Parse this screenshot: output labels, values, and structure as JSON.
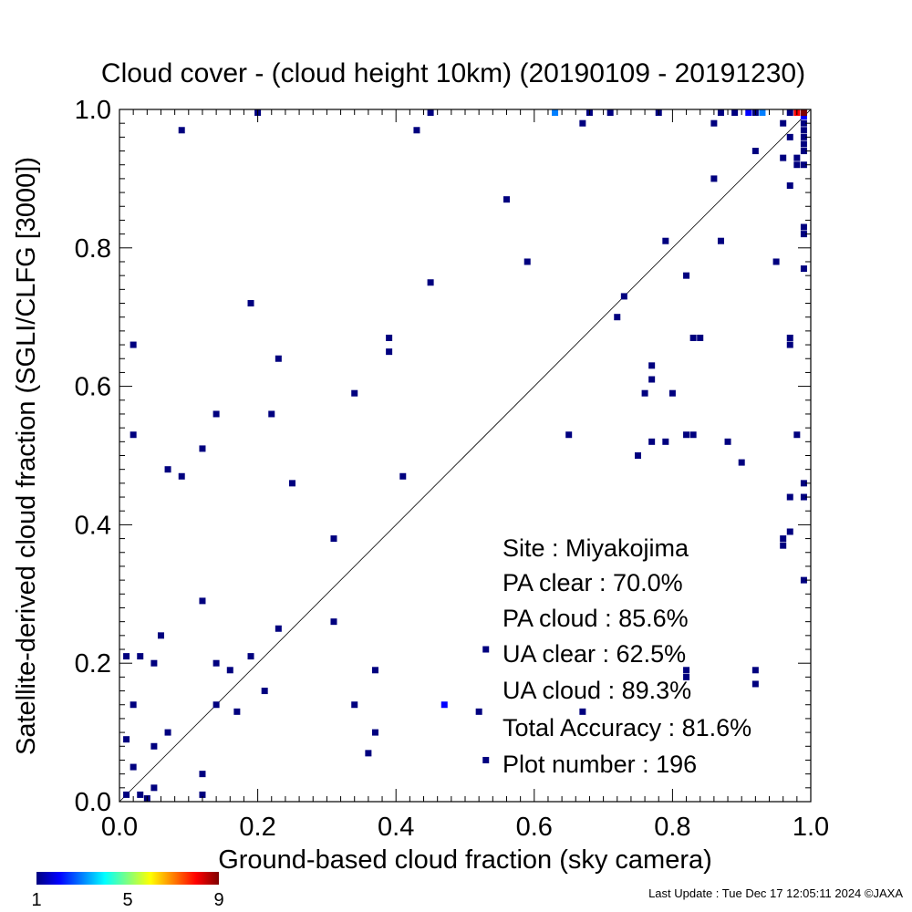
{
  "chart_data": {
    "type": "heatmap",
    "title": "Cloud cover - (cloud height 10km)  (20190109 - 20191230)",
    "xlabel": "Ground-based cloud fraction (sky camera)",
    "ylabel": "Satellite-derived cloud fraction (SGLI/CLFG [3000])",
    "xlim": [
      0.0,
      1.0
    ],
    "ylim": [
      0.0,
      1.0
    ],
    "x_ticks": [
      "0.0",
      "0.2",
      "0.4",
      "0.6",
      "0.8",
      "1.0"
    ],
    "y_ticks": [
      "0.0",
      "0.2",
      "0.4",
      "0.6",
      "0.8",
      "1.0"
    ],
    "diagonal": "y = x",
    "grid": false,
    "colorbar": {
      "min": 1,
      "max": 9,
      "tick_labels": [
        "1",
        "5",
        "9"
      ],
      "colors": [
        "#00007f",
        "#0000ff",
        "#007fff",
        "#00ffff",
        "#7fff7f",
        "#ffff00",
        "#ff7f00",
        "#ff0000",
        "#7f0000"
      ]
    },
    "points": [
      [
        0.01,
        0.01,
        1
      ],
      [
        0.03,
        0.01,
        1
      ],
      [
        0.04,
        0.0,
        1
      ],
      [
        0.05,
        0.02,
        1
      ],
      [
        0.02,
        0.05,
        1
      ],
      [
        0.05,
        0.08,
        1
      ],
      [
        0.01,
        0.09,
        1
      ],
      [
        0.07,
        0.1,
        1
      ],
      [
        0.02,
        0.14,
        1
      ],
      [
        0.01,
        0.21,
        1
      ],
      [
        0.03,
        0.21,
        1
      ],
      [
        0.05,
        0.2,
        1
      ],
      [
        0.06,
        0.24,
        1
      ],
      [
        0.12,
        0.04,
        1
      ],
      [
        0.12,
        0.01,
        1
      ],
      [
        0.12,
        0.29,
        1
      ],
      [
        0.14,
        0.2,
        1
      ],
      [
        0.14,
        0.14,
        1
      ],
      [
        0.16,
        0.19,
        1
      ],
      [
        0.17,
        0.13,
        1
      ],
      [
        0.19,
        0.21,
        1
      ],
      [
        0.21,
        0.16,
        1
      ],
      [
        0.23,
        0.25,
        1
      ],
      [
        0.31,
        0.26,
        1
      ],
      [
        0.31,
        0.38,
        1
      ],
      [
        0.34,
        0.14,
        1
      ],
      [
        0.36,
        0.07,
        1
      ],
      [
        0.37,
        0.1,
        1
      ],
      [
        0.37,
        0.19,
        1
      ],
      [
        0.47,
        0.14,
        2
      ],
      [
        0.52,
        0.13,
        1
      ],
      [
        0.53,
        0.22,
        1
      ],
      [
        0.53,
        0.06,
        1
      ],
      [
        0.67,
        0.13,
        1
      ],
      [
        0.82,
        0.18,
        1
      ],
      [
        0.82,
        0.19,
        1
      ],
      [
        0.92,
        0.17,
        1
      ],
      [
        0.92,
        0.19,
        1
      ],
      [
        0.02,
        0.53,
        1
      ],
      [
        0.02,
        0.66,
        1
      ],
      [
        0.07,
        0.48,
        1
      ],
      [
        0.09,
        0.47,
        1
      ],
      [
        0.12,
        0.51,
        1
      ],
      [
        0.14,
        0.56,
        1
      ],
      [
        0.19,
        0.72,
        1
      ],
      [
        0.22,
        0.56,
        1
      ],
      [
        0.23,
        0.64,
        1
      ],
      [
        0.25,
        0.46,
        1
      ],
      [
        0.34,
        0.59,
        1
      ],
      [
        0.39,
        0.65,
        1
      ],
      [
        0.39,
        0.67,
        1
      ],
      [
        0.41,
        0.47,
        1
      ],
      [
        0.45,
        0.75,
        1
      ],
      [
        0.56,
        0.87,
        1
      ],
      [
        0.59,
        0.78,
        1
      ],
      [
        0.65,
        0.53,
        1
      ],
      [
        0.72,
        0.7,
        1
      ],
      [
        0.73,
        0.73,
        1
      ],
      [
        0.75,
        0.5,
        1
      ],
      [
        0.76,
        0.59,
        1
      ],
      [
        0.77,
        0.52,
        1
      ],
      [
        0.77,
        0.61,
        1
      ],
      [
        0.77,
        0.63,
        1
      ],
      [
        0.79,
        0.52,
        1
      ],
      [
        0.79,
        0.81,
        1
      ],
      [
        0.8,
        0.59,
        1
      ],
      [
        0.82,
        0.53,
        1
      ],
      [
        0.82,
        0.76,
        1
      ],
      [
        0.83,
        0.53,
        1
      ],
      [
        0.83,
        0.67,
        1
      ],
      [
        0.84,
        0.67,
        1
      ],
      [
        0.86,
        0.9,
        1
      ],
      [
        0.87,
        0.81,
        1
      ],
      [
        0.88,
        0.52,
        1
      ],
      [
        0.9,
        0.49,
        1
      ],
      [
        0.92,
        0.94,
        1
      ],
      [
        0.09,
        0.97,
        1
      ],
      [
        0.2,
        1.0,
        1
      ],
      [
        0.43,
        0.97,
        1
      ],
      [
        0.45,
        1.0,
        1
      ],
      [
        0.63,
        1.0,
        3
      ],
      [
        0.67,
        0.98,
        1
      ],
      [
        0.68,
        1.0,
        1
      ],
      [
        0.71,
        1.0,
        1
      ],
      [
        0.78,
        1.0,
        1
      ],
      [
        0.86,
        0.98,
        1
      ],
      [
        0.87,
        1.0,
        1
      ],
      [
        0.89,
        1.0,
        1
      ],
      [
        0.91,
        1.0,
        2
      ],
      [
        0.92,
        1.0,
        1
      ],
      [
        0.93,
        1.0,
        3
      ],
      [
        0.95,
        0.78,
        1
      ],
      [
        0.96,
        0.37,
        1
      ],
      [
        0.96,
        0.38,
        1
      ],
      [
        0.96,
        0.93,
        1
      ],
      [
        0.96,
        0.98,
        1
      ],
      [
        0.97,
        0.39,
        1
      ],
      [
        0.97,
        0.44,
        1
      ],
      [
        0.97,
        0.66,
        1
      ],
      [
        0.97,
        0.67,
        1
      ],
      [
        0.97,
        0.89,
        1
      ],
      [
        0.97,
        0.96,
        1
      ],
      [
        0.97,
        1.0,
        1
      ],
      [
        0.98,
        0.53,
        1
      ],
      [
        0.98,
        0.92,
        1
      ],
      [
        0.98,
        0.93,
        1
      ],
      [
        0.99,
        0.44,
        1
      ],
      [
        0.99,
        0.46,
        1
      ],
      [
        0.99,
        0.32,
        1
      ],
      [
        0.99,
        0.77,
        1
      ],
      [
        0.99,
        0.82,
        1
      ],
      [
        0.99,
        0.83,
        1
      ],
      [
        0.99,
        0.92,
        1
      ],
      [
        0.99,
        0.94,
        1
      ],
      [
        0.99,
        0.95,
        1
      ],
      [
        0.99,
        0.96,
        1
      ],
      [
        0.99,
        0.97,
        1
      ],
      [
        0.99,
        0.99,
        2
      ],
      [
        0.99,
        0.98,
        1
      ],
      [
        0.98,
        1.0,
        8
      ],
      [
        0.99,
        1.0,
        9
      ]
    ]
  },
  "stats": {
    "site": "Site : Miyakojima",
    "pa_clear": "PA clear :  70.0%",
    "pa_cloud": "PA cloud :  85.6%",
    "ua_clear": "UA clear :  62.5%",
    "ua_cloud": "UA cloud :  89.3%",
    "total_accuracy": "Total Accuracy :  81.6%",
    "plot_number": "Plot number :       196"
  },
  "footer": "Last Update : Tue Dec 17 12:05:11 2024  ©JAXA"
}
